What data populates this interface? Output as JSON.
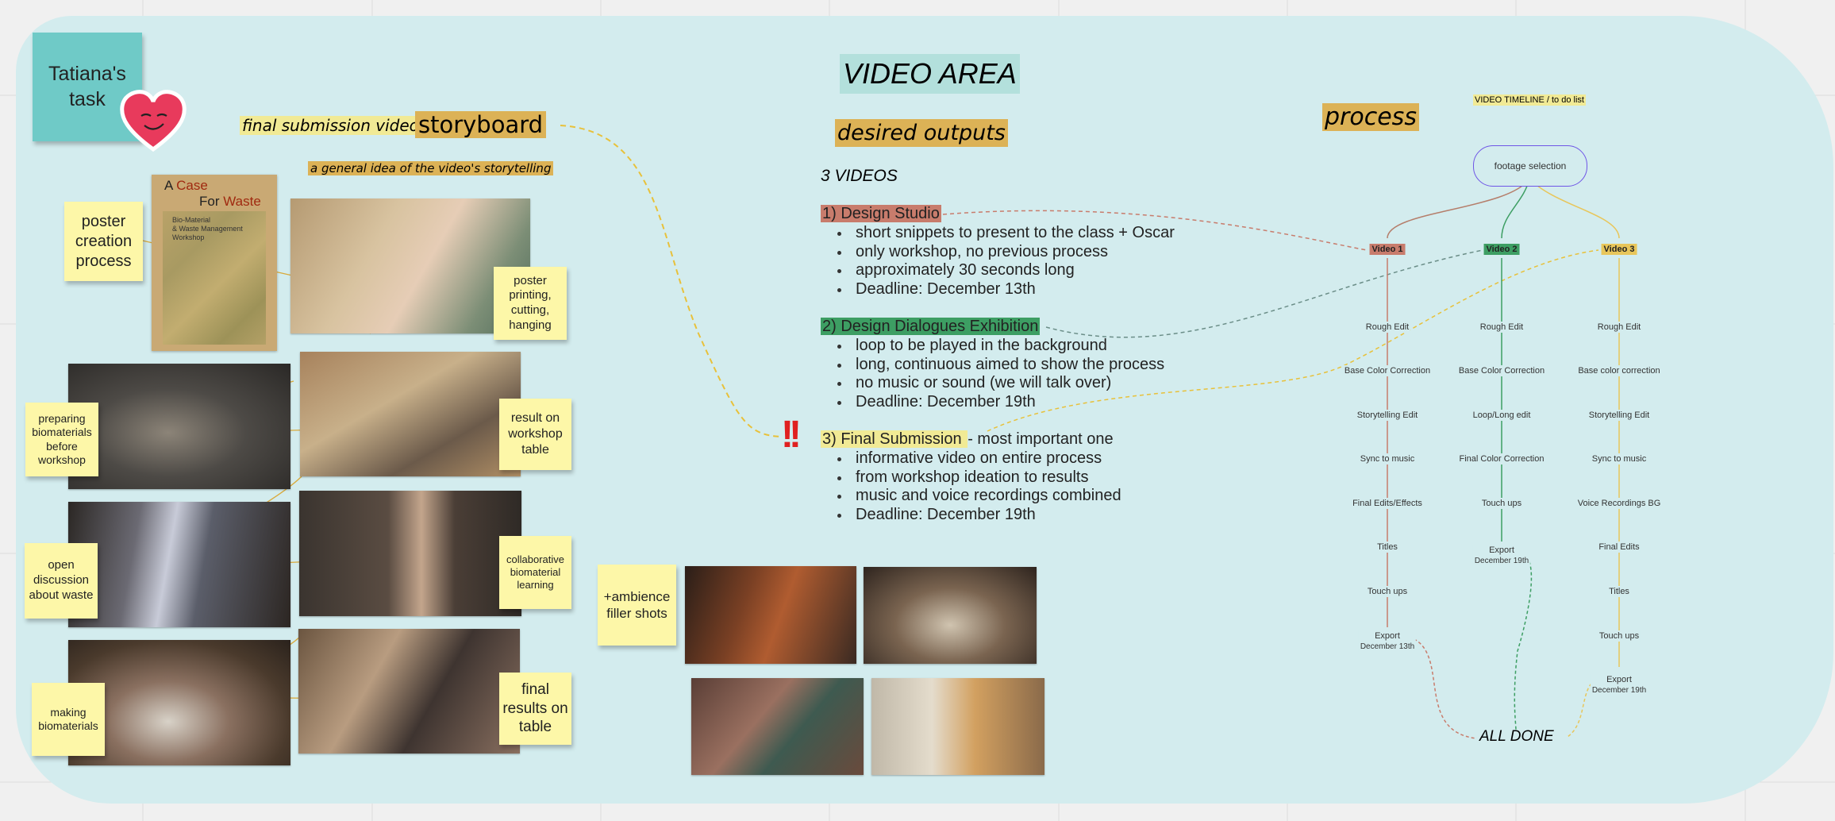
{
  "colors": {
    "board": "#d3ecee",
    "sticky_yellow": "#fdf7a8",
    "sticky_teal": "#6fcac7",
    "highlight_gold": "#dcb256",
    "highlight_yellow": "#f1ea95",
    "video1": "#c87c6c",
    "video2": "#3d9e63",
    "video3": "#e8c65a",
    "pill_border": "#6f56e6",
    "dash_yellow": "#e8c13a",
    "alert_red": "#e02020"
  },
  "task_note": {
    "line1": "Tatiana's",
    "line2": "task",
    "emoji": "smiling-heart-face"
  },
  "storyboard": {
    "final_label": "final submission video",
    "title": "storyboard",
    "subtitle": "a general idea of the video's storytelling",
    "poster": {
      "line1_a": "A ",
      "line1_b": "Case",
      "line2_a": "For ",
      "line2_b": "Waste",
      "sub1": "Bio-Material",
      "sub2": "& Waste Management",
      "sub3": "Workshop"
    },
    "stickies": [
      {
        "text": "poster creation process"
      },
      {
        "text": "poster printing, cutting, hanging"
      },
      {
        "text": "preparing biomaterials before workshop"
      },
      {
        "text": "result on workshop table"
      },
      {
        "text": "open discussion about waste"
      },
      {
        "text": "collaborative biomaterial learning"
      },
      {
        "text": "making biomaterials"
      },
      {
        "text": "final results on table"
      },
      {
        "text": "+ambience filler shots"
      }
    ]
  },
  "video_area": {
    "title": "VIDEO AREA",
    "desired": "desired outputs",
    "count_label": "3 VIDEOS",
    "alert": "!!",
    "sections": [
      {
        "heading": "1) Design Studio",
        "suffix": "",
        "bullets": [
          "short snippets to present to the class + Oscar",
          "only workshop, no previous process",
          "approximately 30 seconds long",
          "Deadline: December 13th"
        ]
      },
      {
        "heading": "2) Design Dialogues Exhibition",
        "suffix": "",
        "bullets": [
          "loop to be played in the background",
          "long, continuous aimed to show the process",
          "no music or sound (we will talk over)",
          "Deadline: December 19th"
        ]
      },
      {
        "heading": "3) Final Submission ",
        "suffix": "- most important one",
        "bullets": [
          "informative video on entire process",
          "from workshop ideation to results",
          "music and voice recordings combined",
          "Deadline: December 19th"
        ]
      }
    ]
  },
  "process": {
    "title": "process",
    "timeline_label": "VIDEO TIMELINE / to do list",
    "root": "footage selection",
    "videos": [
      {
        "label": "Video 1",
        "steps": [
          "Rough Edit",
          "Base Color Correction",
          "Storytelling Edit",
          "Sync to music",
          "Final Edits/Effects",
          "Titles",
          "Touch ups"
        ],
        "export": "Export",
        "deadline": "December 13th"
      },
      {
        "label": "Video 2",
        "steps": [
          "Rough Edit",
          "Base Color Correction",
          "Loop/Long edit",
          "Final Color Correction",
          "Touch ups"
        ],
        "export": "Export",
        "deadline": "December 19th"
      },
      {
        "label": "Video 3",
        "steps": [
          "Rough Edit",
          "Base color correction",
          "Storytelling Edit",
          "Sync to music",
          "Voice Recordings BG",
          "Final Edits",
          "Titles",
          "Touch ups"
        ],
        "export": "Export",
        "deadline": "December 19th"
      }
    ],
    "done": "ALL DONE"
  }
}
